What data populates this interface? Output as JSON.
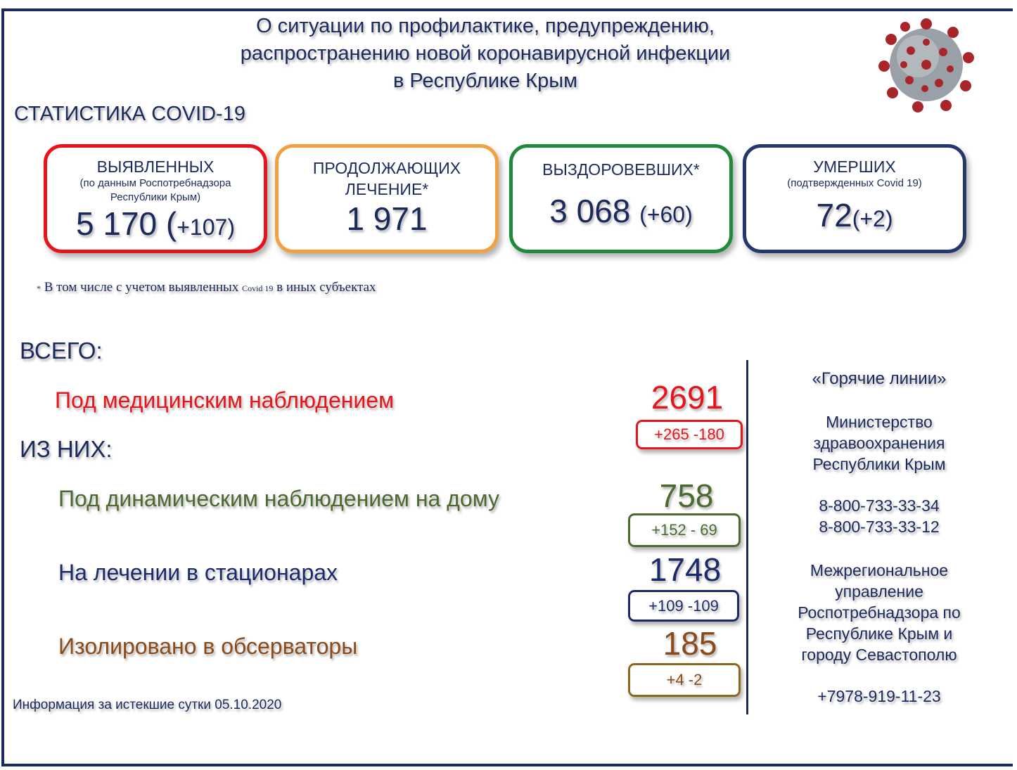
{
  "header": {
    "title_lines": [
      "О ситуации по профилактике, предупреждению,",
      "распространению новой коронавирусной инфекции",
      "в Республике Крым"
    ],
    "image_icon": "coronavirus-icon"
  },
  "stats_heading": "СТАТИСТИКА COVID-19",
  "cards": [
    {
      "title": "ВЫЯВЛЕННЫХ",
      "subtitle": "(по данным Роспотребнадзора Республики Крым)",
      "value": "5 170 (",
      "delta": "+107)",
      "color": "#e8141c"
    },
    {
      "title": "ПРОДОЛЖАЮЩИХ ЛЕЧЕНИЕ*",
      "subtitle": "",
      "value": "1 971",
      "delta": "",
      "color": "#f5a040"
    },
    {
      "title": "ВЫЗДОРОВЕВШИХ*",
      "subtitle": "",
      "value": "3 068 ",
      "delta": "(+60)",
      "color": "#1f8a3a"
    },
    {
      "title": "УМЕРШИХ",
      "subtitle": "(подтвержденных Covid 19)",
      "value": "72",
      "delta": "(+2)",
      "color": "#24386e"
    }
  ],
  "footnote": {
    "star": "*",
    "text": "В том числе с учетом выявленных",
    "small": "Covid 19",
    "tail": "в иных субъектах"
  },
  "total_label": "ВСЕГО:",
  "of_them_label": "ИЗ НИХ:",
  "rows": [
    {
      "label": "Под медицинским наблюдением",
      "value": "2691",
      "delta": "+265  -180",
      "color": "#e8141c"
    },
    {
      "label": "Под динамическим наблюдением на дому",
      "value": "758",
      "delta": "+152  - 69",
      "color": "#4a6a2e"
    },
    {
      "label": "На лечении в стационарах",
      "value": "1748",
      "delta": "+109  -109",
      "color": "#1b2a6c"
    },
    {
      "label": "Изолировано в обсерваторы",
      "value": "185",
      "delta": "+4   -2",
      "color": "#8a4a1a"
    }
  ],
  "hotlines": {
    "title": "«Горячие линии»",
    "ministry": [
      "Министерство",
      "здравоохранения",
      "Республики Крым"
    ],
    "ministry_phones": [
      "8-800-733-33-34",
      "8-800-733-33-12"
    ],
    "rpn": [
      "Межрегиональное",
      "управление",
      "Роспотребнадзора по",
      "Республике Крым и",
      "городу Севастополю"
    ],
    "rpn_phone": "+7978-919-11-23"
  },
  "footer": "Информация за истекшие сутки 05.10.2020"
}
